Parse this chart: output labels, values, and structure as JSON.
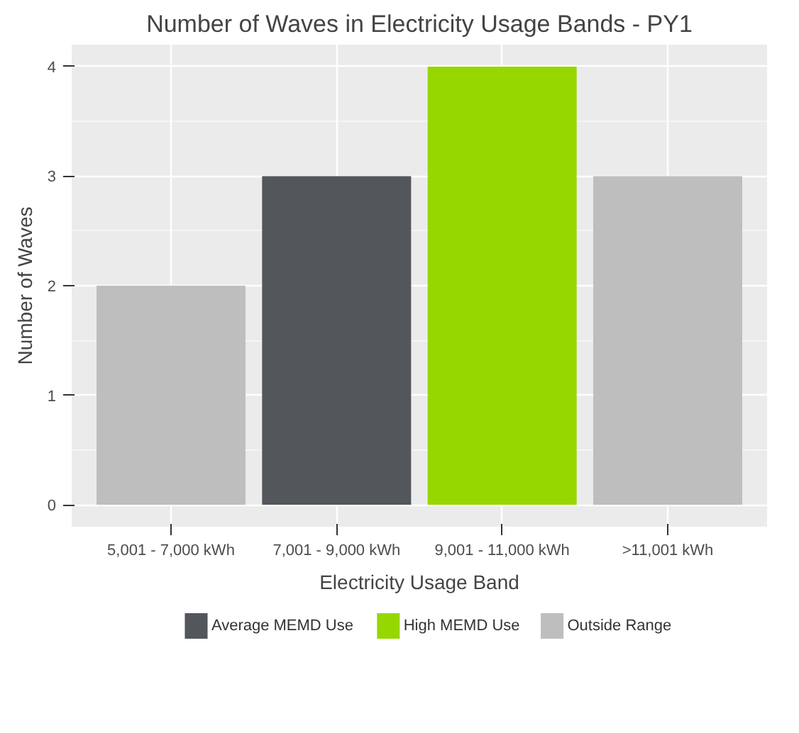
{
  "chart_data": {
    "type": "bar",
    "title": "Number of Waves in Electricity Usage Bands - PY1",
    "xlabel": "Electricity Usage Band",
    "ylabel": "Number of Waves",
    "categories": [
      "5,001 - 7,000 kWh",
      "7,001 - 9,000 kWh",
      "9,001 - 11,000 kWh",
      ">11,001 kWh"
    ],
    "series": [
      {
        "name": "Average MEMD Use",
        "color": "#53565a",
        "values": [
          null,
          3,
          null,
          null
        ]
      },
      {
        "name": "High MEMD Use",
        "color": "#97d700",
        "values": [
          null,
          null,
          4,
          null
        ]
      },
      {
        "name": "Outside Range",
        "color": "#bebebe",
        "values": [
          2,
          null,
          null,
          3
        ]
      }
    ],
    "ylim": [
      -0.2,
      4.2
    ],
    "yticks": [
      0,
      1,
      2,
      3,
      4
    ],
    "grid": true,
    "legend": "bottom"
  }
}
